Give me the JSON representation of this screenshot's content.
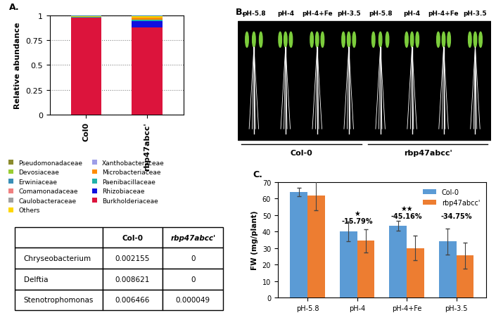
{
  "chart_data": [
    {
      "type": "bar",
      "title": "A.",
      "stacked": true,
      "categories": [
        "Col0",
        "rbp47abcc'"
      ],
      "y_label": "Relative abundance",
      "ylim": [
        0,
        1
      ],
      "yticks": [
        0,
        0.25,
        0.5,
        0.75,
        1
      ],
      "grid": true,
      "legend": "lower left",
      "series": [
        {
          "name": "Pseudomonadaceae",
          "color": "#8b8b2e",
          "values": [
            0.001,
            0.001
          ]
        },
        {
          "name": "Devosiaceae",
          "color": "#9acd32",
          "values": [
            0.003,
            0.002
          ]
        },
        {
          "name": "Erwiniaceae",
          "color": "#3a8fb7",
          "values": [
            0.002,
            0.002
          ]
        },
        {
          "name": "Comamonadaceae",
          "color": "#f08080",
          "values": [
            0.002,
            0.003
          ]
        },
        {
          "name": "Caulobacteraceae",
          "color": "#a0a0a0",
          "values": [
            0.001,
            0.002
          ]
        },
        {
          "name": "Others",
          "color": "#ffd700",
          "values": [
            0.005,
            0.01
          ]
        },
        {
          "name": "Xanthobacteraceae",
          "color": "#9e9ee8",
          "values": [
            0.001,
            0.005
          ]
        },
        {
          "name": "Microbacteriaceae",
          "color": "#ff8c00",
          "values": [
            0.003,
            0.02
          ]
        },
        {
          "name": "Paenibacillaceae",
          "color": "#20b2aa",
          "values": [
            0.005,
            0.015
          ]
        },
        {
          "name": "Rhizobiaceae",
          "color": "#1010e0",
          "values": [
            0.002,
            0.065
          ]
        },
        {
          "name": "Burkholderiaceae",
          "color": "#dc143c",
          "values": [
            0.975,
            0.875
          ]
        }
      ]
    },
    {
      "type": "bar",
      "title": "C.",
      "categories": [
        "pH-5.8",
        "pH-4",
        "pH-4+Fe",
        "pH-3.5"
      ],
      "y_label": "FW (mg/plant)",
      "ylim": [
        0,
        70
      ],
      "yticks": [
        0,
        10,
        20,
        30,
        40,
        50,
        60,
        70
      ],
      "legend": "upper right",
      "series": [
        {
          "name": "Col-0",
          "color": "#5b9bd5",
          "values": [
            64,
            40,
            43.5,
            34
          ],
          "errors": [
            2.5,
            6,
            3,
            8
          ]
        },
        {
          "name": "rbp47abcc'",
          "color": "#ed7d31",
          "values": [
            62,
            34.5,
            30,
            25.5
          ],
          "errors": [
            9,
            7,
            7.5,
            8
          ]
        }
      ],
      "annotations": [
        {
          "text": "★",
          "category": "pH-4",
          "y": 49
        },
        {
          "text": "-15.79%",
          "category": "pH-4",
          "y": 44.5
        },
        {
          "text": "★★",
          "category": "pH-4+Fe",
          "y": 52
        },
        {
          "text": "-45.16%",
          "category": "pH-4+Fe",
          "y": 47.5
        },
        {
          "text": "-34.75%",
          "category": "pH-3.5",
          "y": 47.5
        }
      ]
    }
  ],
  "photo": {
    "title": "B.",
    "groups": [
      {
        "label": "Col-0",
        "conditions": [
          "pH-5.8",
          "pH-4",
          "pH-4+Fe",
          "pH-3.5"
        ]
      },
      {
        "label": "rbp47abcc'",
        "conditions": [
          "pH-5.8",
          "pH-4",
          "pH-4+Fe",
          "pH-3.5"
        ]
      }
    ]
  },
  "table": {
    "columns": [
      "Col-0",
      "rbp47abcc'"
    ],
    "rows": [
      {
        "label": "Chryseobacterium",
        "cells": [
          "0.002155",
          "0"
        ]
      },
      {
        "label": "Delftia",
        "cells": [
          "0.008621",
          "0"
        ]
      },
      {
        "label": "Stenotrophomonas",
        "cells": [
          "0.006466",
          "0.000049"
        ]
      }
    ]
  }
}
